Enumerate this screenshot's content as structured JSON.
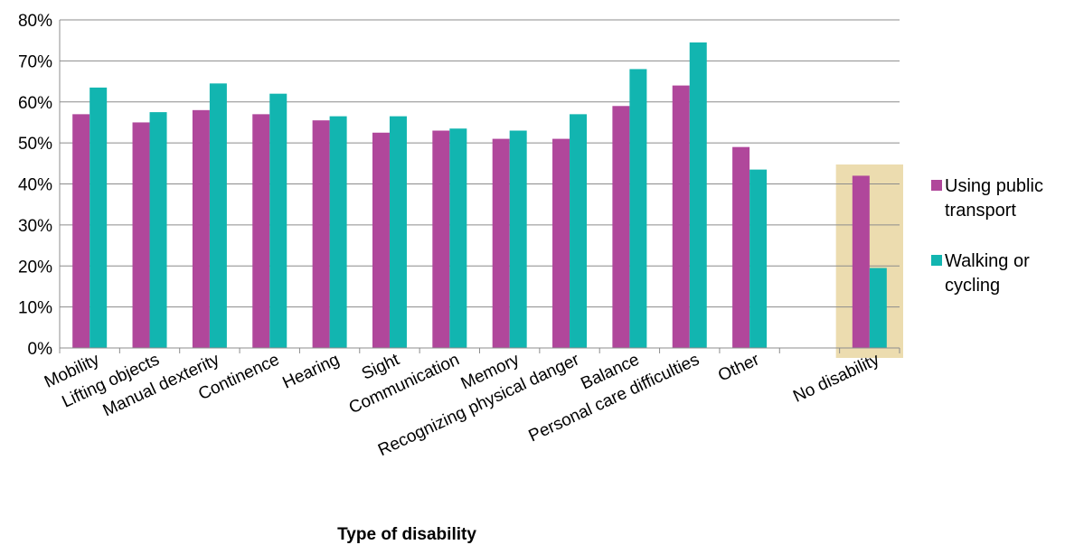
{
  "chart_data": {
    "type": "bar",
    "title": "",
    "xlabel": "Type of disability",
    "ylabel": "",
    "ylim": [
      0,
      80
    ],
    "yticks": [
      "0%",
      "10%",
      "20%",
      "30%",
      "40%",
      "50%",
      "60%",
      "70%",
      "80%"
    ],
    "grid": true,
    "legend_position": "right",
    "highlighted_category": "No disability",
    "highlight_color": "#ecdcaf",
    "categories": [
      "Mobility",
      "Lifting objects",
      "Manual dexterity",
      "Continence",
      "Hearing",
      "Sight",
      "Communication",
      "Memory",
      "Recognizing physical danger",
      "Balance",
      "Personal care difficulties",
      "Other",
      "",
      "No disability"
    ],
    "series": [
      {
        "name": "Using public transport",
        "legend_lines": [
          "Using public",
          "transport"
        ],
        "color": "#b0479b",
        "values": [
          57,
          55,
          58,
          57,
          55.5,
          52.5,
          53,
          51,
          51,
          59,
          64,
          49,
          null,
          42
        ]
      },
      {
        "name": "Walking or cycling",
        "legend_lines": [
          "Walking or",
          "cycling"
        ],
        "color": "#12b5b0",
        "values": [
          63.5,
          57.5,
          64.5,
          62,
          56.5,
          56.5,
          53.5,
          53,
          57,
          68,
          74.5,
          43.5,
          null,
          19.5
        ]
      }
    ]
  }
}
